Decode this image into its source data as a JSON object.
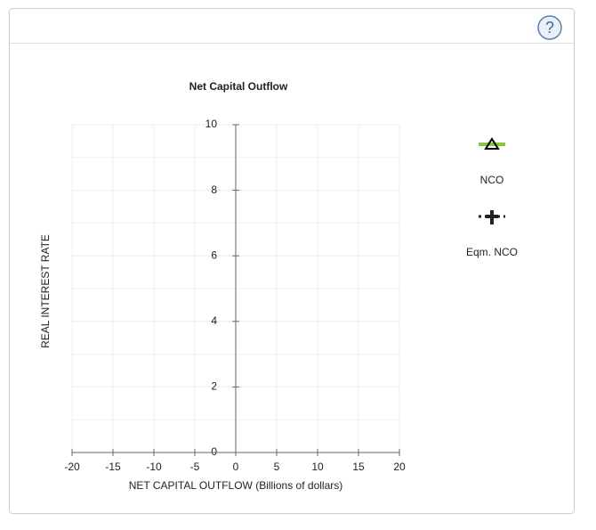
{
  "chart_data": {
    "type": "line",
    "title": "Net Capital Outflow",
    "x_label": "NET CAPITAL OUTFLOW (Billions of dollars)",
    "y_label": "REAL INTEREST RATE",
    "x": [],
    "series": [
      {
        "name": "NCO",
        "color": "#8dc63f",
        "values": []
      },
      {
        "name": "Eqm. NCO",
        "color": "#222222",
        "values": []
      }
    ],
    "xlim": [
      -20,
      20
    ],
    "xticks": [
      -20,
      -15,
      -10,
      -5,
      0,
      5,
      10,
      15,
      20
    ],
    "ylim": [
      0,
      10
    ],
    "yticks": [
      0,
      2,
      4,
      6,
      8,
      10
    ],
    "yminor": [
      1,
      3,
      5,
      7,
      9
    ],
    "grid": true
  }
}
